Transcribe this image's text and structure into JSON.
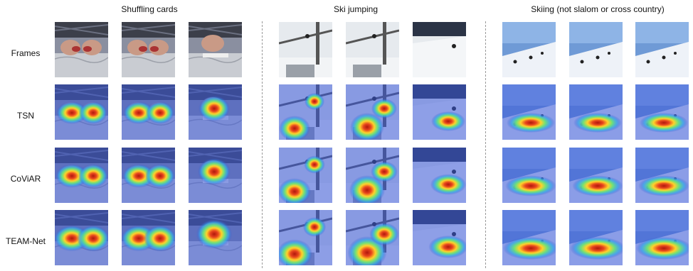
{
  "groups": [
    {
      "title": "Shuffling cards",
      "scene": "cards"
    },
    {
      "title": "Ski jumping",
      "scene": "jump"
    },
    {
      "title": "Skiing (not slalom or cross country)",
      "scene": "slope"
    }
  ],
  "rows": [
    {
      "label": "Frames",
      "type": "frame"
    },
    {
      "label": "TSN",
      "type": "heat"
    },
    {
      "label": "CoViAR",
      "type": "heat"
    },
    {
      "label": "TEAM-Net",
      "type": "heat"
    }
  ]
}
